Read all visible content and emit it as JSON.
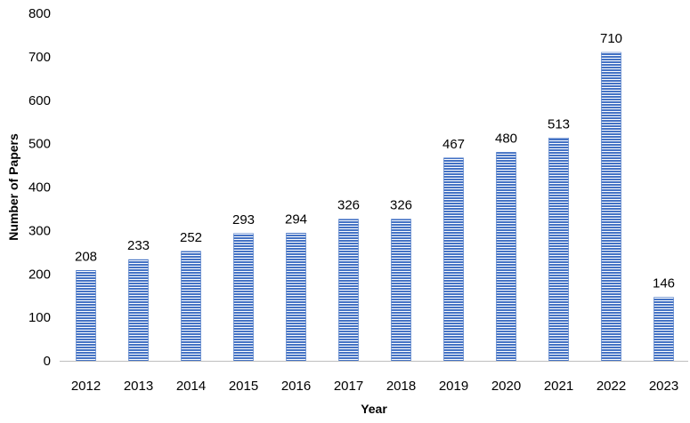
{
  "chart_data": {
    "type": "bar",
    "title": "",
    "xlabel": "Year",
    "ylabel": "Number of Papers",
    "categories": [
      "2012",
      "2013",
      "2014",
      "2015",
      "2016",
      "2017",
      "2018",
      "2019",
      "2020",
      "2021",
      "2022",
      "2023"
    ],
    "values": [
      208,
      233,
      252,
      293,
      294,
      326,
      326,
      467,
      480,
      513,
      710,
      146
    ],
    "ylim": [
      0,
      800
    ],
    "yticks": [
      0,
      100,
      200,
      300,
      400,
      500,
      600,
      700,
      800
    ],
    "grid": false,
    "legend": "none",
    "data_labels": true,
    "bar_color": "#4472C4",
    "bar_fill_pattern": "horizontal-stripes"
  }
}
